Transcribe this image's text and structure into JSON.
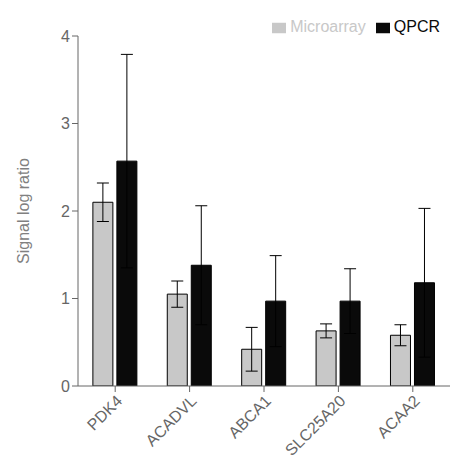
{
  "chart_data": {
    "type": "bar",
    "categories": [
      "PDK4",
      "ACADVL",
      "ABCA1",
      "SLC25A20",
      "ACAA2"
    ],
    "series": [
      {
        "name": "Microarray",
        "color": "#c8c8c8",
        "values": [
          2.1,
          1.05,
          0.42,
          0.63,
          0.58
        ],
        "errors": [
          0.22,
          0.15,
          0.25,
          0.08,
          0.12
        ]
      },
      {
        "name": "QPCR",
        "color": "#0a0a0a",
        "values": [
          2.57,
          1.38,
          0.97,
          0.97,
          1.18
        ],
        "errors": [
          1.22,
          0.68,
          0.52,
          0.37,
          0.85
        ]
      }
    ],
    "ylabel": "Signal log ratio",
    "ylim": [
      0,
      4
    ],
    "yticks": [
      0,
      1,
      2,
      3,
      4
    ],
    "grid": false,
    "legend": "upper right"
  }
}
